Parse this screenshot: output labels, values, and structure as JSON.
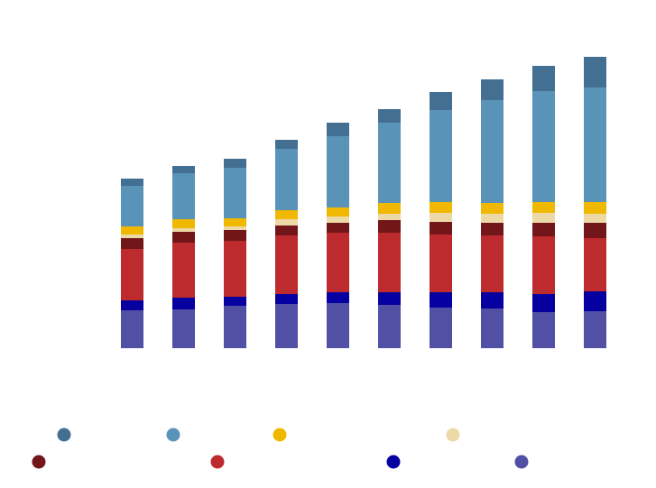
{
  "chart_data": {
    "type": "bar",
    "stacked": true,
    "title": "",
    "xlabel": "",
    "ylabel": "",
    "grid": false,
    "legend_position": "bottom",
    "categories": [
      "",
      "",
      "",
      "",
      "",
      "",
      "",
      "",
      "",
      ""
    ],
    "series": [
      {
        "color": "#5150a4",
        "values": [
          42,
          43,
          47,
          49,
          50,
          48,
          45,
          44,
          40,
          41
        ]
      },
      {
        "color": "#0600a0",
        "values": [
          11,
          13,
          10,
          11,
          12,
          14,
          17,
          18,
          20,
          22
        ]
      },
      {
        "color": "#bd2b2e",
        "values": [
          57,
          61,
          62,
          65,
          66,
          66,
          64,
          63,
          64,
          59
        ]
      },
      {
        "color": "#731619",
        "values": [
          12,
          12,
          12,
          11,
          11,
          14,
          14,
          14,
          15,
          17
        ]
      },
      {
        "color": "#edd9a6",
        "values": [
          4,
          4,
          4,
          7,
          7,
          7,
          10,
          10,
          11,
          10
        ]
      },
      {
        "color": "#f0b800",
        "values": [
          9,
          10,
          9,
          10,
          10,
          12,
          12,
          12,
          12,
          13
        ]
      },
      {
        "color": "#5994b8",
        "values": [
          45,
          51,
          56,
          68,
          79,
          89,
          102,
          114,
          123,
          127
        ]
      },
      {
        "color": "#436f93",
        "values": [
          8,
          8,
          10,
          10,
          15,
          15,
          20,
          23,
          28,
          34
        ]
      }
    ],
    "ylim": [
      0,
      340
    ]
  }
}
